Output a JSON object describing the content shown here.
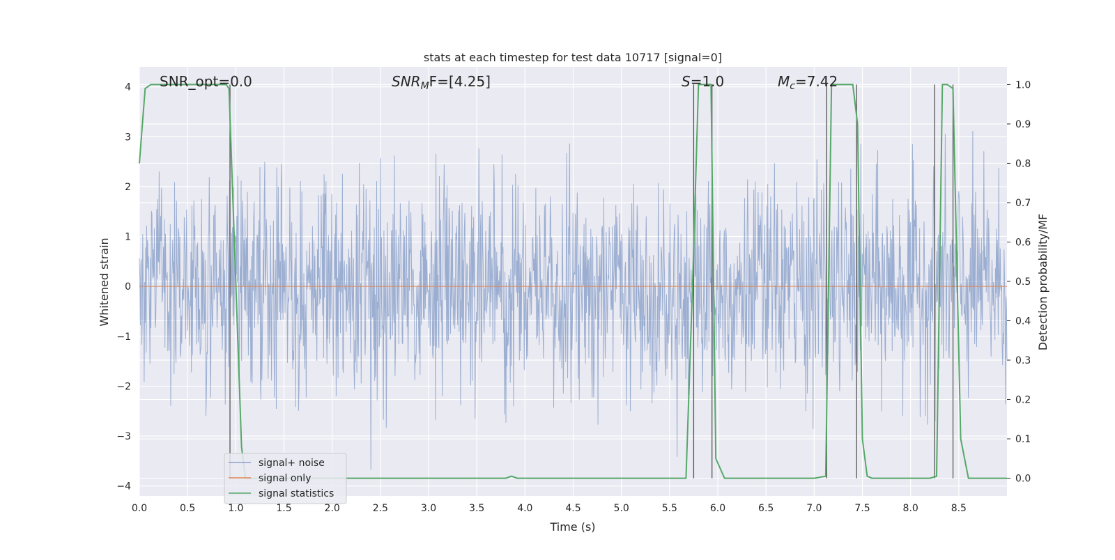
{
  "chart_data": {
    "type": "line",
    "title": "stats at each timestep for test data 10717 [signal=0]",
    "xlabel": "Time (s)",
    "ylabel_left": "Whitened strain",
    "ylabel_right": "Detection probability/MF",
    "xlim": [
      0.0,
      9.0
    ],
    "ylim_left": [
      -4.2,
      4.4
    ],
    "ylim_right": [
      -0.045,
      1.045
    ],
    "x_ticks": [
      0.0,
      0.5,
      1.0,
      1.5,
      2.0,
      2.5,
      3.0,
      3.5,
      4.0,
      4.5,
      5.0,
      5.5,
      6.0,
      6.5,
      7.0,
      7.5,
      8.0,
      8.5
    ],
    "x_tick_labels": [
      "0.0",
      "0.5",
      "1.0",
      "1.5",
      "2.0",
      "2.5",
      "3.0",
      "3.5",
      "4.0",
      "4.5",
      "5.0",
      "5.5",
      "6.0",
      "6.5",
      "7.0",
      "7.5",
      "8.0",
      "8.5"
    ],
    "y_left_ticks": [
      -4,
      -3,
      -2,
      -1,
      0,
      1,
      2,
      3,
      4
    ],
    "y_left_tick_labels": [
      "−4",
      "−3",
      "−2",
      "−1",
      "0",
      "1",
      "2",
      "3",
      "4"
    ],
    "y_right_ticks": [
      0.0,
      0.1,
      0.2,
      0.3,
      0.4,
      0.5,
      0.6,
      0.7,
      0.8,
      0.9,
      1.0
    ],
    "y_right_tick_labels": [
      "0.0",
      "0.1",
      "0.2",
      "0.3",
      "0.4",
      "0.5",
      "0.6",
      "0.7",
      "0.8",
      "0.9",
      "1.0"
    ],
    "grid": true,
    "legend_placement": "lower-left",
    "annotations": {
      "snr_opt": "SNR_opt=0.0",
      "snr_mf_main": "SNR",
      "snr_mf_sub": "M",
      "snr_mf_rest": "F=[4.25]",
      "s_var": "S",
      "s_rest": "=1.0",
      "mc_var": "M",
      "mc_sub": "c",
      "mc_rest": "=7.42"
    },
    "series": [
      {
        "name": "signal+ noise",
        "color": "#4C72B0",
        "noise_amplitude_range": [
          -3.7,
          4.0
        ],
        "noise_typical_std": 1.0,
        "sample_count": 1800
      },
      {
        "name": "signal only",
        "color": "#DD8452",
        "x": [
          0.0,
          9.0
        ],
        "y": [
          0.0,
          0.0
        ]
      },
      {
        "name": "signal statistics",
        "color": "#55A868",
        "axis": "right",
        "x": [
          0.0,
          0.06,
          0.12,
          0.3,
          0.6,
          0.9,
          0.93,
          1.0,
          1.06,
          1.1,
          1.5,
          2.0,
          2.5,
          3.0,
          3.5,
          3.8,
          3.86,
          3.92,
          4.5,
          5.0,
          5.5,
          5.67,
          5.74,
          5.8,
          5.88,
          5.93,
          5.98,
          6.07,
          6.5,
          7.0,
          7.12,
          7.18,
          7.25,
          7.4,
          7.45,
          7.5,
          7.55,
          7.6,
          8.0,
          8.2,
          8.27,
          8.33,
          8.38,
          8.44,
          8.52,
          8.6,
          9.0
        ],
        "y": [
          0.8,
          0.99,
          1.0,
          1.0,
          1.0,
          1.0,
          0.99,
          0.5,
          0.08,
          0.0,
          0.0,
          0.0,
          0.0,
          0.0,
          0.0,
          0.0,
          0.005,
          0.0,
          0.0,
          0.0,
          0.0,
          0.0,
          0.5,
          1.0,
          1.0,
          1.0,
          0.05,
          0.0,
          0.0,
          0.0,
          0.005,
          1.0,
          1.0,
          1.0,
          0.9,
          0.1,
          0.005,
          0.0,
          0.0,
          0.0,
          0.005,
          1.0,
          1.0,
          0.99,
          0.1,
          0.0,
          0.0
        ]
      }
    ],
    "vertical_markers": [
      0.94,
      5.75,
      5.94,
      7.13,
      7.44,
      8.25,
      8.44
    ]
  }
}
